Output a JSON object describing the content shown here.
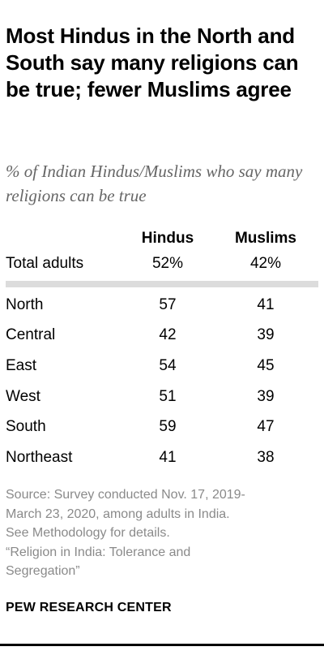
{
  "header": {
    "title": "Most Hindus in the North and South say many religions can be true; fewer Muslims agree",
    "subtitle": "% of Indian Hindus/Muslims who say many religions can be true"
  },
  "chart_data": {
    "type": "table",
    "columns": [
      "Hindus",
      "Muslims"
    ],
    "total": {
      "label": "Total adults",
      "hindus": "52%",
      "muslims": "42%"
    },
    "rows": [
      {
        "label": "North",
        "hindus": "57",
        "muslims": "41"
      },
      {
        "label": "Central",
        "hindus": "42",
        "muslims": "39"
      },
      {
        "label": "East",
        "hindus": "54",
        "muslims": "45"
      },
      {
        "label": "West",
        "hindus": "51",
        "muslims": "39"
      },
      {
        "label": "South",
        "hindus": "59",
        "muslims": "47"
      },
      {
        "label": "Northeast",
        "hindus": "41",
        "muslims": "38"
      }
    ]
  },
  "footer": {
    "source_lines": [
      "Source: Survey conducted Nov. 17, 2019-",
      "March 23, 2020, among adults in India.",
      "See Methodology for details.",
      "“Religion in India: Tolerance and",
      "Segregation”"
    ],
    "org": "PEW RESEARCH CENTER"
  },
  "colors": {
    "subtitle": "#666666",
    "source": "#8a8a8a",
    "divider": "#dcdcdc"
  }
}
